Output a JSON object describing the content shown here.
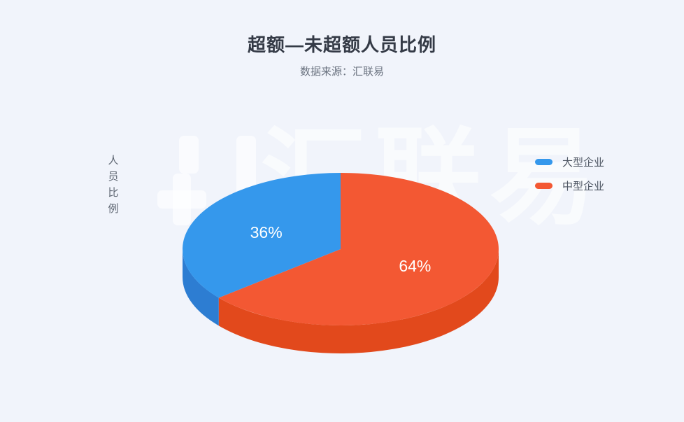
{
  "page": {
    "background_color": "#f1f4fb"
  },
  "header": {
    "title": "超额—未超额人员比例",
    "subtitle": "数据来源：汇联易"
  },
  "watermark": {
    "text": "汇联易"
  },
  "chart_data": {
    "type": "pie",
    "style": "3d",
    "title": "超额—未超额人员比例",
    "subtitle": "数据来源：汇联易",
    "y_axis_label": "人员比例",
    "legend_position": "right",
    "start_angle": "top",
    "direction": "counterclockwise",
    "series": [
      {
        "name": "大型企业",
        "value": 36,
        "label": "36%",
        "color": "#3598EC",
        "side_color": "#2D7DD2"
      },
      {
        "name": "中型企业",
        "value": 64,
        "label": "64%",
        "color": "#F35833",
        "side_color": "#E2491C"
      }
    ]
  }
}
